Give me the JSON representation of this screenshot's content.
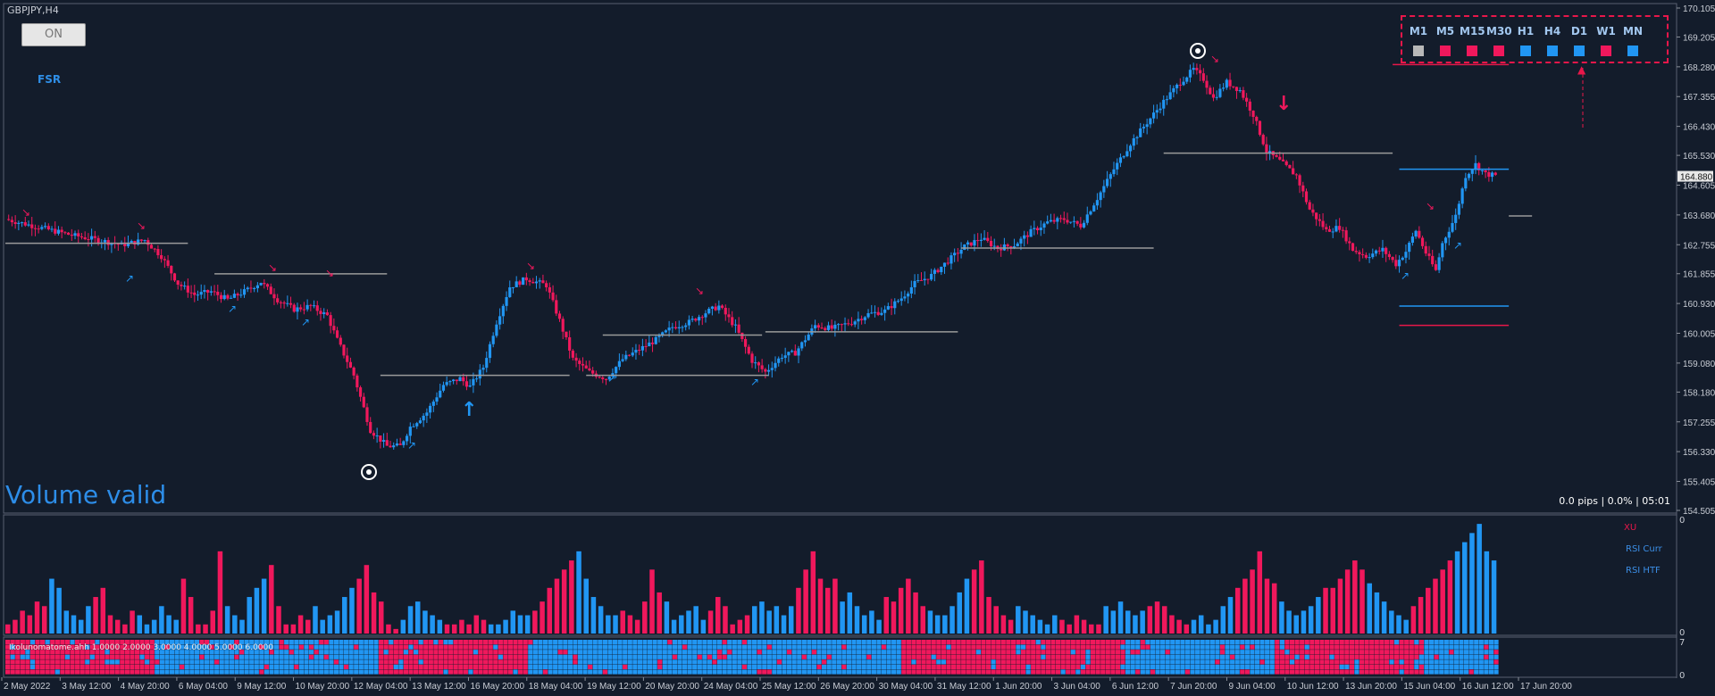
{
  "header": {
    "symbol": "GBPJPY,H4",
    "on_button": "ON",
    "fsr": "FSR"
  },
  "footer_left": "Volume valid",
  "pips_info": "0.0 pips | 0.0% | 05:01",
  "current_price": "164.880",
  "mtf": {
    "timeframes": [
      "M1",
      "M5",
      "M15",
      "M30",
      "H1",
      "H4",
      "D1",
      "W1",
      "MN"
    ],
    "states": [
      "neutral",
      "down",
      "down",
      "down",
      "up",
      "up",
      "up",
      "down",
      "up"
    ]
  },
  "colors": {
    "up": "#2196f3",
    "down": "#f0185c",
    "neutral": "#b8b8b8",
    "background": "#131c2b",
    "grid_text": "#c8ccd4"
  },
  "sub_legend": {
    "xu": "XU",
    "rsi_curr": "RSI Curr",
    "rsi_htf": "RSI HTF",
    "label": "Ikolunomatome.ahh 1.0000 2.0000 3.0000 4.0000 5.0000 6.0000",
    "scale_top": "0",
    "scale_bottom": "0",
    "scale_mid": "7"
  },
  "chart_data": [
    {
      "type": "candlestick",
      "title": "GBPJPY,H4",
      "y_ticks": [
        170.105,
        169.205,
        168.28,
        167.355,
        166.43,
        165.53,
        164.605,
        163.68,
        162.755,
        161.855,
        160.93,
        160.005,
        159.08,
        158.18,
        157.255,
        156.33,
        155.405,
        154.505
      ],
      "ylim": [
        154.505,
        170.105
      ],
      "x_ticks": [
        "2 May 2022",
        "3 May 12:00",
        "4 May 20:00",
        "6 May 04:00",
        "9 May 12:00",
        "10 May 20:00",
        "12 May 04:00",
        "13 May 12:00",
        "16 May 20:00",
        "18 May 04:00",
        "19 May 12:00",
        "20 May 20:00",
        "24 May 04:00",
        "25 May 12:00",
        "26 May 20:00",
        "30 May 04:00",
        "31 May 12:00",
        "1 Jun 20:00",
        "3 Jun 04:00",
        "6 Jun 12:00",
        "7 Jun 20:00",
        "9 Jun 04:00",
        "10 Jun 12:00",
        "13 Jun 20:00",
        "15 Jun 04:00",
        "16 Jun 12:00",
        "17 Jun 20:00"
      ],
      "close_path": [
        [
          0,
          163.55
        ],
        [
          10,
          163.3
        ],
        [
          20,
          163.05
        ],
        [
          28,
          162.9
        ],
        [
          35,
          162.75
        ],
        [
          42,
          162.9
        ],
        [
          47,
          162.4
        ],
        [
          52,
          161.55
        ],
        [
          57,
          161.2
        ],
        [
          62,
          161.3
        ],
        [
          67,
          161.05
        ],
        [
          72,
          161.3
        ],
        [
          77,
          161.6
        ],
        [
          82,
          161.05
        ],
        [
          87,
          160.75
        ],
        [
          92,
          160.85
        ],
        [
          97,
          160.55
        ],
        [
          100,
          159.8
        ],
        [
          105,
          158.7
        ],
        [
          110,
          157.0
        ],
        [
          115,
          156.5
        ],
        [
          119,
          156.5
        ],
        [
          122,
          157.1
        ],
        [
          127,
          157.55
        ],
        [
          132,
          158.4
        ],
        [
          137,
          158.6
        ],
        [
          140,
          158.35
        ],
        [
          144,
          158.95
        ],
        [
          148,
          160.35
        ],
        [
          152,
          161.45
        ],
        [
          157,
          161.7
        ],
        [
          163,
          161.5
        ],
        [
          167,
          160.4
        ],
        [
          171,
          159.2
        ],
        [
          176,
          158.8
        ],
        [
          181,
          158.6
        ],
        [
          186,
          159.2
        ],
        [
          191,
          159.5
        ],
        [
          196,
          159.8
        ],
        [
          201,
          160.2
        ],
        [
          206,
          160.35
        ],
        [
          211,
          160.65
        ],
        [
          215,
          160.85
        ],
        [
          220,
          160.2
        ],
        [
          225,
          159.15
        ],
        [
          229,
          158.8
        ],
        [
          234,
          159.3
        ],
        [
          238,
          159.4
        ],
        [
          244,
          160.25
        ],
        [
          249,
          160.15
        ],
        [
          255,
          160.35
        ],
        [
          260,
          160.6
        ],
        [
          265,
          160.7
        ],
        [
          270,
          161.1
        ],
        [
          274,
          161.55
        ],
        [
          279,
          161.8
        ],
        [
          284,
          162.25
        ],
        [
          289,
          162.7
        ],
        [
          294,
          162.95
        ],
        [
          299,
          162.65
        ],
        [
          304,
          162.75
        ],
        [
          309,
          163.15
        ],
        [
          314,
          163.45
        ],
        [
          319,
          163.55
        ],
        [
          324,
          163.35
        ],
        [
          329,
          164.2
        ],
        [
          334,
          165.1
        ],
        [
          339,
          165.9
        ],
        [
          344,
          166.55
        ],
        [
          349,
          167.2
        ],
        [
          354,
          167.8
        ],
        [
          358,
          168.2
        ],
        [
          361,
          167.9
        ],
        [
          364,
          167.3
        ],
        [
          368,
          167.8
        ],
        [
          372,
          167.55
        ],
        [
          376,
          166.8
        ],
        [
          380,
          165.65
        ],
        [
          384,
          165.35
        ],
        [
          389,
          164.9
        ],
        [
          393,
          163.85
        ],
        [
          398,
          163.2
        ],
        [
          402,
          163.3
        ],
        [
          406,
          162.6
        ],
        [
          410,
          162.4
        ],
        [
          415,
          162.6
        ],
        [
          419,
          162.15
        ],
        [
          422,
          162.55
        ],
        [
          425,
          163.2
        ],
        [
          428,
          162.5
        ],
        [
          431,
          161.95
        ],
        [
          433,
          162.8
        ],
        [
          437,
          163.65
        ],
        [
          440,
          164.9
        ],
        [
          443,
          165.25
        ],
        [
          446,
          164.95
        ],
        [
          449,
          164.9
        ]
      ],
      "levels": [
        {
          "x0": 0,
          "x1": 55,
          "y": 162.8,
          "color": "#9a9a9a"
        },
        {
          "x0": 63,
          "x1": 115,
          "y": 161.85,
          "color": "#9a9a9a"
        },
        {
          "x0": 113,
          "x1": 170,
          "y": 158.7,
          "color": "#9a9a9a"
        },
        {
          "x0": 175,
          "x1": 230,
          "y": 158.7,
          "color": "#9a9a9a"
        },
        {
          "x0": 180,
          "x1": 228,
          "y": 159.95,
          "color": "#9a9a9a"
        },
        {
          "x0": 229,
          "x1": 287,
          "y": 160.05,
          "color": "#9a9a9a"
        },
        {
          "x0": 288,
          "x1": 346,
          "y": 162.65,
          "color": "#9a9a9a"
        },
        {
          "x0": 349,
          "x1": 418,
          "y": 165.6,
          "color": "#9a9a9a"
        },
        {
          "x0": 418,
          "x1": 453,
          "y": 168.35,
          "color": "#e8174a"
        },
        {
          "x0": 420,
          "x1": 453,
          "y": 165.1,
          "color": "#2196f3"
        },
        {
          "x0": 420,
          "x1": 453,
          "y": 160.85,
          "color": "#2196f3"
        },
        {
          "x0": 420,
          "x1": 453,
          "y": 160.25,
          "color": "#e8174a"
        },
        {
          "x0": 453,
          "x1": 460,
          "y": 163.65,
          "color": "#9a9a9a"
        }
      ]
    },
    {
      "type": "bar",
      "title": "Volume histogram",
      "values": [
        2,
        3,
        5,
        4,
        7,
        6,
        12,
        10,
        5,
        4,
        3,
        6,
        8,
        10,
        4,
        3,
        2,
        5,
        4,
        2,
        3,
        6,
        4,
        3,
        12,
        8,
        2,
        2,
        5,
        18,
        6,
        4,
        3,
        8,
        10,
        12,
        15,
        6,
        2,
        2,
        4,
        3,
        6,
        3,
        4,
        5,
        8,
        10,
        12,
        15,
        9,
        7,
        2,
        1,
        3,
        6,
        7,
        5,
        4,
        3,
        2,
        2,
        3,
        2,
        4,
        3,
        2,
        2,
        3,
        5,
        4,
        4,
        5,
        7,
        10,
        12,
        14,
        16,
        18,
        12,
        8,
        6,
        4,
        4,
        5,
        4,
        3,
        7,
        14,
        9,
        7,
        3,
        4,
        5,
        6,
        3,
        5,
        8,
        6,
        2,
        3,
        4,
        6,
        7,
        5,
        6,
        4,
        6,
        10,
        14,
        18,
        12,
        10,
        12,
        7,
        9,
        6,
        4,
        5,
        3,
        8,
        7,
        10,
        12,
        9,
        6,
        5,
        4,
        4,
        6,
        9,
        12,
        14,
        16,
        8,
        6,
        4,
        3,
        6,
        5,
        4,
        3,
        2,
        4,
        3,
        2,
        4,
        3,
        2,
        2,
        6,
        5,
        7,
        5,
        4,
        5,
        6,
        7,
        6,
        4,
        3,
        2,
        3,
        4,
        2,
        3,
        6,
        8,
        10,
        12,
        14,
        18,
        12,
        11,
        7,
        5,
        4,
        5,
        6,
        8,
        10,
        10,
        12,
        14,
        16,
        14,
        11,
        9,
        7,
        5,
        4,
        3,
        6,
        8,
        10,
        12,
        14,
        16,
        18,
        20,
        22,
        24,
        18,
        16
      ],
      "ylim": [
        0,
        25
      ]
    },
    {
      "type": "heatmap",
      "title": "RSI matrix",
      "rows": 7,
      "description_values": [
        0,
        0,
        1,
        1,
        1,
        0,
        0,
        1,
        1,
        1,
        1,
        1,
        0,
        0,
        0,
        1,
        1,
        0,
        0,
        1
      ]
    }
  ]
}
